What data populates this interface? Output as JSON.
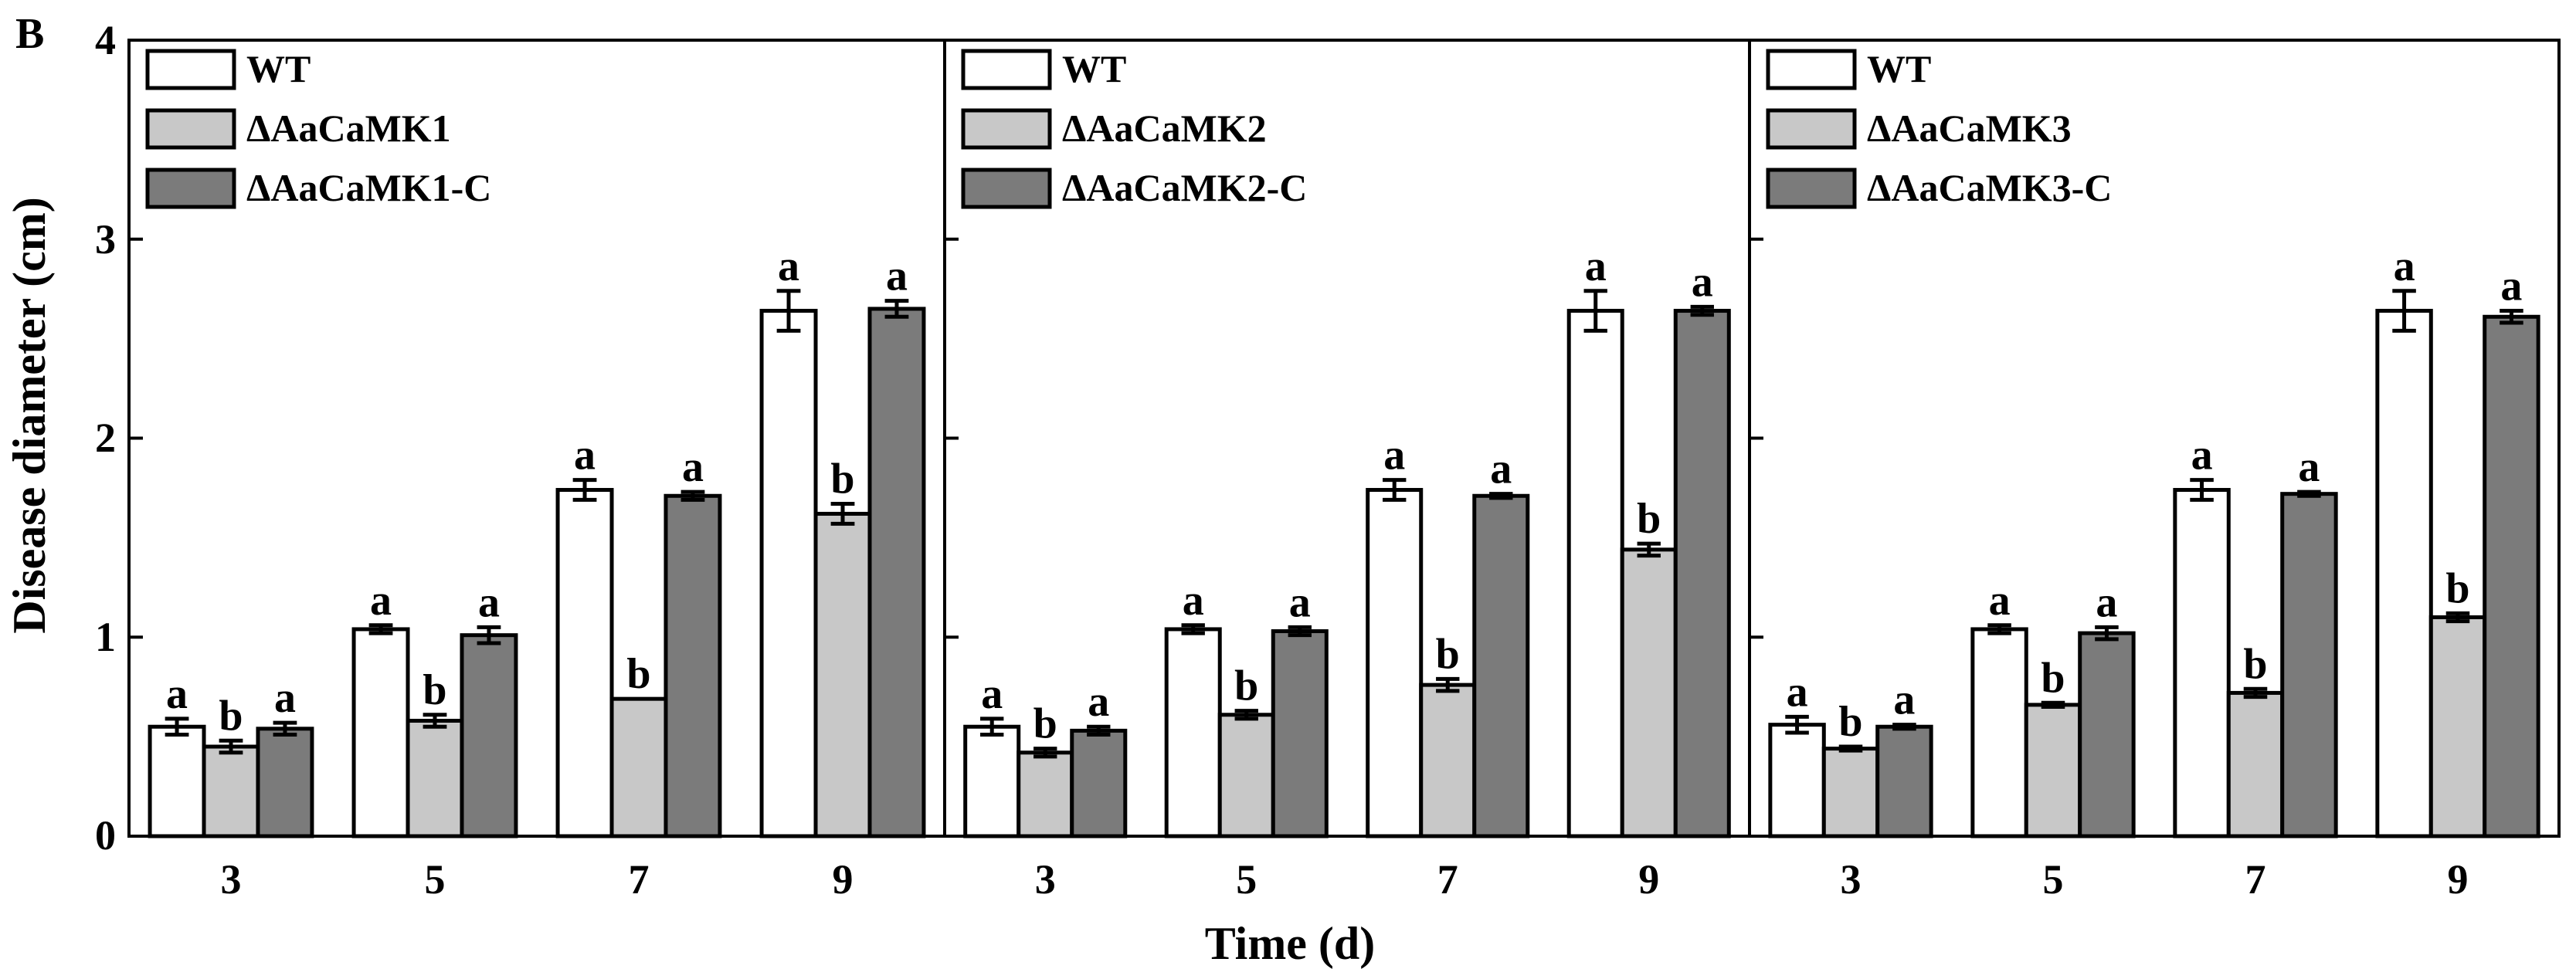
{
  "panel_label": "B",
  "ylabel": "Disease diameter (cm)",
  "xlabel": "Time (d)",
  "y_ticks": [
    "0",
    "1",
    "2",
    "3",
    "4"
  ],
  "colors": {
    "wt": "#ffffff",
    "mutant": "#c8c8c8",
    "complement": "#7b7b7b",
    "stroke": "#000000"
  },
  "chart_data": [
    {
      "type": "bar",
      "categories": [
        "3",
        "5",
        "7",
        "9"
      ],
      "ylim": [
        0,
        4
      ],
      "ylabel": "Disease diameter (cm)",
      "xlabel": "Time (d)",
      "legend_position": "top-left",
      "series": [
        {
          "name": "WT",
          "values": [
            0.55,
            1.04,
            1.74,
            2.64
          ],
          "errors": [
            0.04,
            0.02,
            0.05,
            0.1
          ],
          "letters": [
            "a",
            "a",
            "a",
            "a"
          ]
        },
        {
          "name": "ΔAaCaMK1",
          "values": [
            0.45,
            0.58,
            0.69,
            1.62
          ],
          "errors": [
            0.03,
            0.03,
            0.0,
            0.05
          ],
          "letters": [
            "b",
            "b",
            "b",
            "b"
          ]
        },
        {
          "name": "ΔAaCaMK1-C",
          "values": [
            0.54,
            1.01,
            1.71,
            2.65
          ],
          "errors": [
            0.03,
            0.04,
            0.02,
            0.04
          ],
          "letters": [
            "a",
            "a",
            "a",
            "a"
          ]
        }
      ]
    },
    {
      "type": "bar",
      "categories": [
        "3",
        "5",
        "7",
        "9"
      ],
      "ylim": [
        0,
        4
      ],
      "ylabel": "Disease diameter (cm)",
      "xlabel": "Time (d)",
      "legend_position": "top-left",
      "series": [
        {
          "name": "WT",
          "values": [
            0.55,
            1.04,
            1.74,
            2.64
          ],
          "errors": [
            0.04,
            0.02,
            0.05,
            0.1
          ],
          "letters": [
            "a",
            "a",
            "a",
            "a"
          ]
        },
        {
          "name": "ΔAaCaMK2",
          "values": [
            0.42,
            0.61,
            0.76,
            1.44
          ],
          "errors": [
            0.02,
            0.02,
            0.03,
            0.03
          ],
          "letters": [
            "b",
            "b",
            "b",
            "b"
          ]
        },
        {
          "name": "ΔAaCaMK2-C",
          "values": [
            0.53,
            1.03,
            1.71,
            2.64
          ],
          "errors": [
            0.02,
            0.02,
            0.01,
            0.02
          ],
          "letters": [
            "a",
            "a",
            "a",
            "a"
          ]
        }
      ]
    },
    {
      "type": "bar",
      "categories": [
        "3",
        "5",
        "7",
        "9"
      ],
      "ylim": [
        0,
        4
      ],
      "ylabel": "Disease diameter (cm)",
      "xlabel": "Time (d)",
      "legend_position": "top-left",
      "series": [
        {
          "name": "WT",
          "values": [
            0.56,
            1.04,
            1.74,
            2.64
          ],
          "errors": [
            0.04,
            0.02,
            0.05,
            0.1
          ],
          "letters": [
            "a",
            "a",
            "a",
            "a"
          ]
        },
        {
          "name": "ΔAaCaMK3",
          "values": [
            0.44,
            0.66,
            0.72,
            1.1
          ],
          "errors": [
            0.01,
            0.01,
            0.02,
            0.02
          ],
          "letters": [
            "b",
            "b",
            "b",
            "b"
          ]
        },
        {
          "name": "ΔAaCaMK3-C",
          "values": [
            0.55,
            1.02,
            1.72,
            2.61
          ],
          "errors": [
            0.01,
            0.03,
            0.01,
            0.03
          ],
          "letters": [
            "a",
            "a",
            "a",
            "a"
          ]
        }
      ]
    }
  ]
}
